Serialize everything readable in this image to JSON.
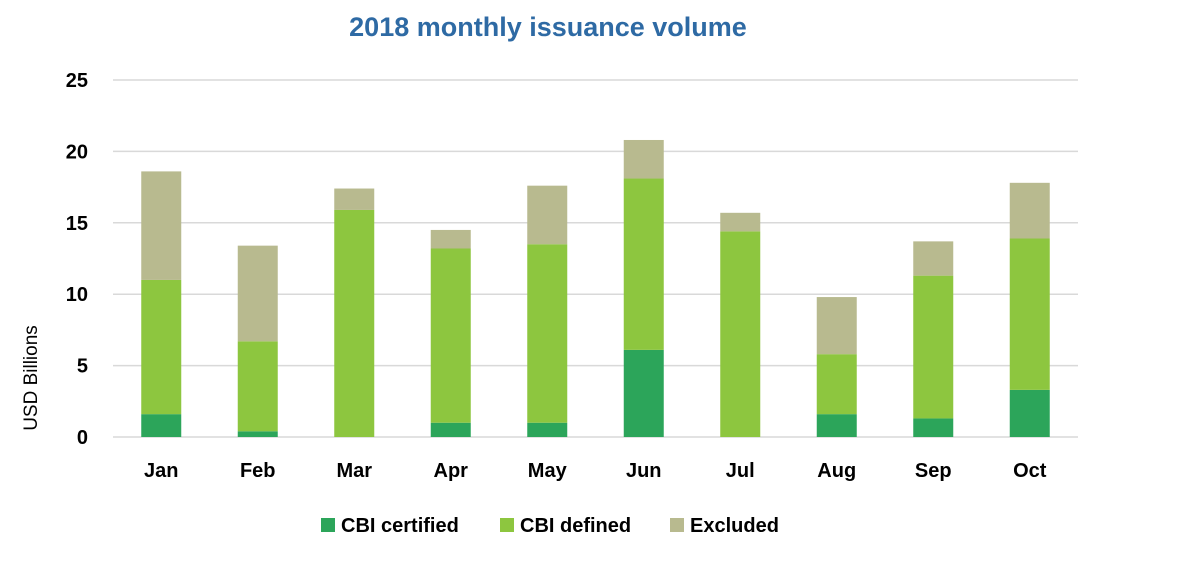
{
  "chart_data": {
    "type": "bar",
    "stacked": true,
    "title": "2018 monthly issuance volume",
    "ylabel": "USD Billions",
    "xlabel": "",
    "ylim": [
      0,
      25
    ],
    "yticks": [
      0,
      5,
      10,
      15,
      20,
      25
    ],
    "grid": true,
    "legend_position": "bottom",
    "categories": [
      "Jan",
      "Feb",
      "Mar",
      "Apr",
      "May",
      "Jun",
      "Jul",
      "Aug",
      "Sep",
      "Oct"
    ],
    "series": [
      {
        "name": "CBI certified",
        "color": "#2ca55a",
        "values": [
          1.6,
          0.4,
          0,
          1.0,
          1.0,
          6.1,
          0,
          1.6,
          1.3,
          3.3
        ]
      },
      {
        "name": "CBI defined",
        "color": "#8dc63f",
        "values": [
          9.4,
          6.3,
          15.9,
          12.2,
          12.5,
          12.0,
          14.4,
          4.2,
          10.0,
          10.6
        ]
      },
      {
        "name": "Excluded",
        "color": "#b8ba8f",
        "values": [
          7.6,
          6.7,
          1.5,
          1.3,
          4.1,
          2.7,
          1.3,
          4.0,
          2.4,
          3.9
        ]
      }
    ]
  }
}
